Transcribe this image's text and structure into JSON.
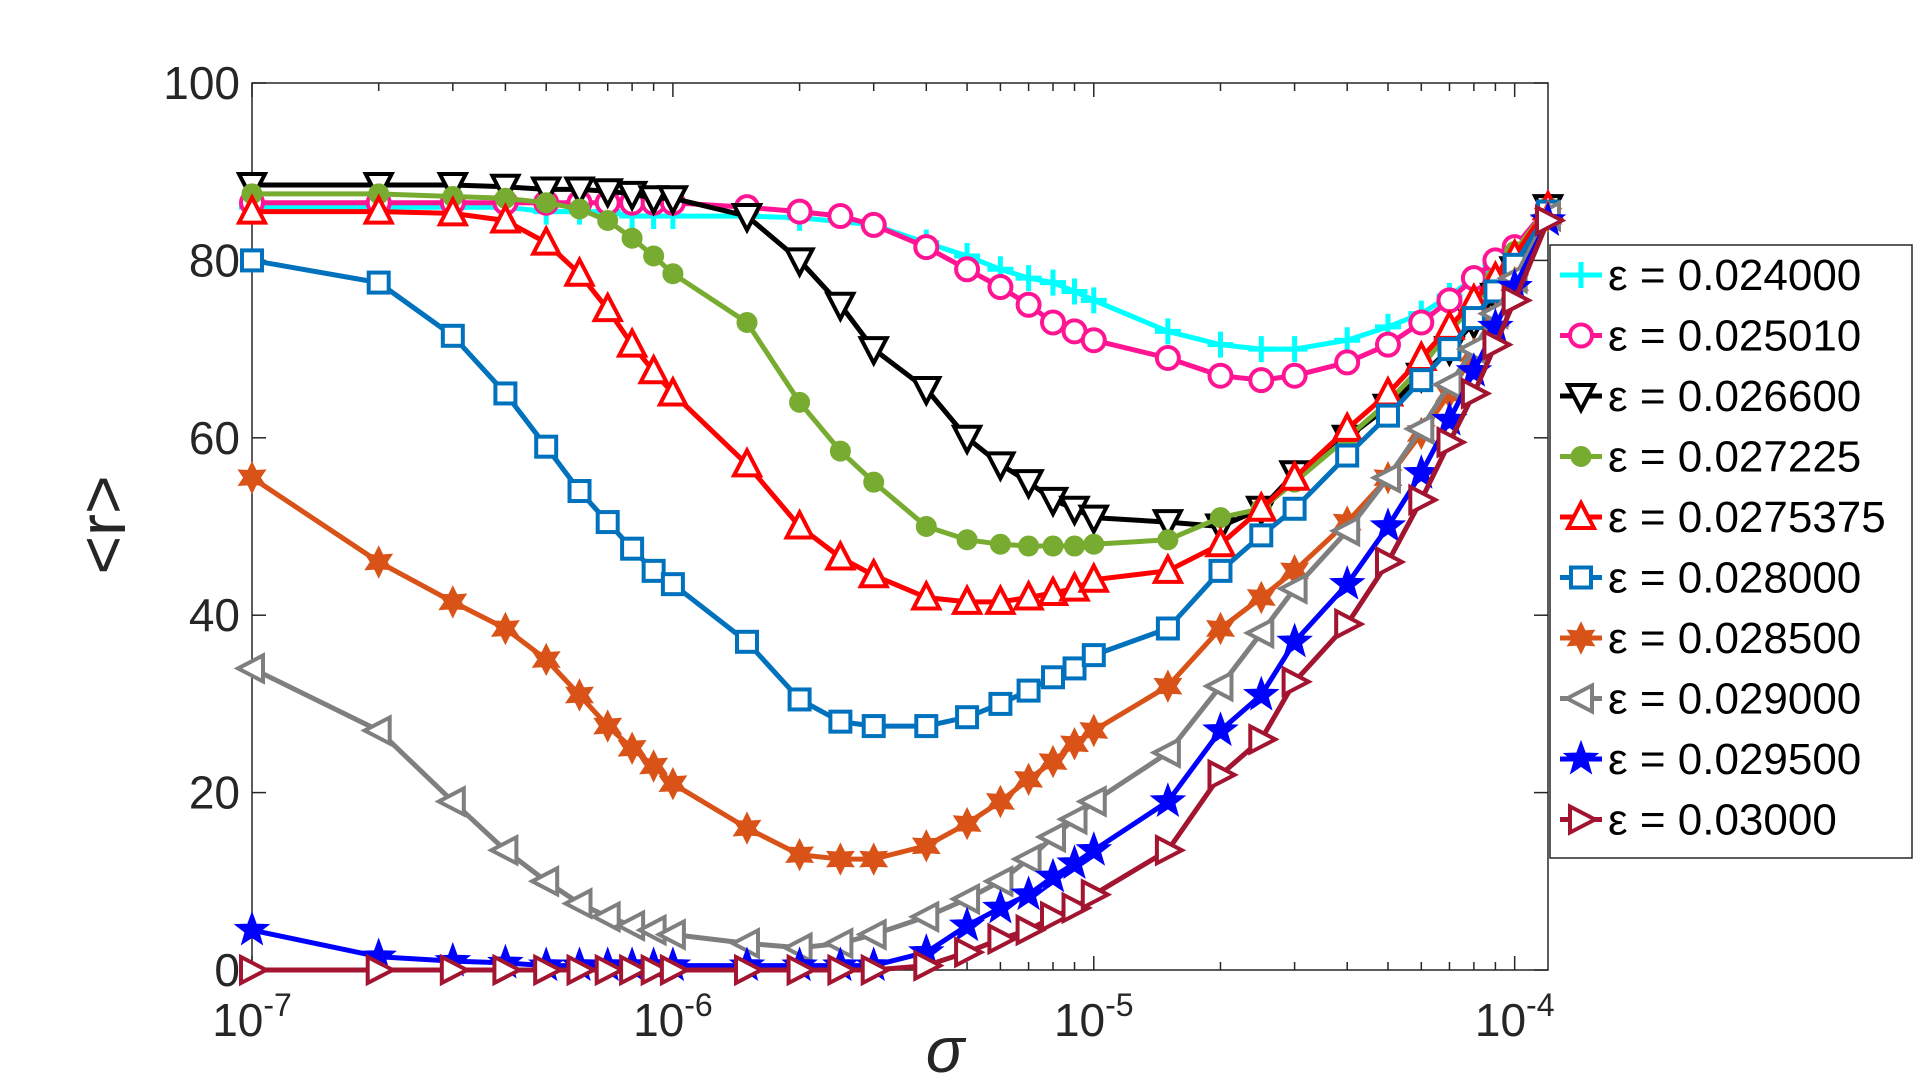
{
  "chart_data": {
    "type": "line",
    "title": "",
    "xlabel": "σ",
    "ylabel": "<r>",
    "xscale": "log",
    "xlim": [
      1e-07,
      0.00012
    ],
    "ylim": [
      0,
      100
    ],
    "grid": false,
    "legend_position": "right",
    "x_tick_values": [
      1e-07,
      1e-06,
      1e-05,
      0.0001
    ],
    "x_tick_labels": [
      {
        "base": "10",
        "exp": "-7"
      },
      {
        "base": "10",
        "exp": "-6"
      },
      {
        "base": "10",
        "exp": "-5"
      },
      {
        "base": "10",
        "exp": "-4"
      }
    ],
    "y_ticks": [
      0,
      20,
      40,
      60,
      80,
      100
    ],
    "y_tick_labels": [
      "0",
      "20",
      "40",
      "60",
      "80",
      "100"
    ],
    "series": [
      {
        "name": "ε = 0.024000",
        "color": "#00ffff",
        "marker": "plus",
        "x": [
          1e-07,
          2e-07,
          3e-07,
          4e-07,
          5e-07,
          6e-07,
          7e-07,
          8e-07,
          9e-07,
          1e-06,
          1.5e-06,
          2e-06,
          3e-06,
          4e-06,
          5e-06,
          6e-06,
          7e-06,
          8e-06,
          9e-06,
          1e-05,
          1.5e-05,
          2e-05,
          2.5e-05,
          3e-05,
          4e-05,
          5e-05,
          6e-05,
          7e-05,
          8e-05,
          9e-05,
          0.0001,
          0.00012
        ],
        "y": [
          86,
          86,
          86,
          86,
          85.5,
          85.5,
          85.5,
          85,
          85,
          85,
          85,
          84.8,
          84,
          82,
          80.5,
          79,
          78,
          77.5,
          76.5,
          75.5,
          72,
          70.5,
          70,
          70,
          71,
          72.5,
          74,
          76,
          78,
          79.5,
          81,
          86
        ]
      },
      {
        "name": "ε = 0.025010",
        "color": "#ff1493",
        "marker": "circle",
        "x": [
          1e-07,
          2e-07,
          3e-07,
          4e-07,
          5e-07,
          6e-07,
          7e-07,
          8e-07,
          9e-07,
          1e-06,
          1.5e-06,
          2e-06,
          2.5e-06,
          3e-06,
          4e-06,
          5e-06,
          6e-06,
          7e-06,
          8e-06,
          9e-06,
          1e-05,
          1.5e-05,
          2e-05,
          2.5e-05,
          3e-05,
          4e-05,
          5e-05,
          6e-05,
          7e-05,
          8e-05,
          9e-05,
          0.0001,
          0.00012
        ],
        "y": [
          86.5,
          86.5,
          86.5,
          86.5,
          86.5,
          86.5,
          86.5,
          86.5,
          86.5,
          86.5,
          86,
          85.5,
          85,
          84,
          81.5,
          79,
          77,
          75,
          73,
          72,
          71,
          69,
          67,
          66.5,
          67,
          68.5,
          70.5,
          73,
          75.5,
          78,
          80,
          81.5,
          86
        ]
      },
      {
        "name": "ε = 0.026600",
        "color": "#000000",
        "marker": "triangle-down",
        "x": [
          1e-07,
          2e-07,
          3e-07,
          4e-07,
          5e-07,
          6e-07,
          7e-07,
          8e-07,
          9e-07,
          1e-06,
          1.5e-06,
          2e-06,
          2.5e-06,
          3e-06,
          4e-06,
          5e-06,
          6e-06,
          7e-06,
          8e-06,
          9e-06,
          1e-05,
          1.5e-05,
          2e-05,
          2.5e-05,
          3e-05,
          4e-05,
          5e-05,
          6e-05,
          7e-05,
          8e-05,
          9e-05,
          0.0001,
          0.00012
        ],
        "y": [
          88.5,
          88.5,
          88.5,
          88.3,
          88,
          88,
          87.8,
          87.5,
          87,
          87,
          85,
          80,
          75,
          70,
          65.5,
          60,
          57,
          55,
          53,
          52,
          51,
          50.5,
          50,
          52,
          56,
          60,
          63.5,
          67,
          70,
          73,
          76,
          79,
          86
        ]
      },
      {
        "name": "ε = 0.027225",
        "color": "#77ac30",
        "marker": "dot",
        "x": [
          1e-07,
          2e-07,
          3e-07,
          4e-07,
          5e-07,
          6e-07,
          7e-07,
          8e-07,
          9e-07,
          1e-06,
          1.5e-06,
          2e-06,
          2.5e-06,
          3e-06,
          4e-06,
          5e-06,
          6e-06,
          7e-06,
          8e-06,
          9e-06,
          1e-05,
          1.5e-05,
          2e-05,
          2.5e-05,
          3e-05,
          4e-05,
          5e-05,
          6e-05,
          7e-05,
          8e-05,
          9e-05,
          0.0001,
          0.00012
        ],
        "y": [
          87.5,
          87.5,
          87.2,
          87,
          86.5,
          85.8,
          84.5,
          82.5,
          80.5,
          78.5,
          73,
          64,
          58.5,
          55,
          50,
          48.5,
          48,
          47.8,
          47.8,
          47.8,
          48,
          48.5,
          51,
          52,
          55,
          60,
          64,
          68,
          72,
          75,
          78,
          81,
          86
        ]
      },
      {
        "name": "ε = 0.0275375",
        "color": "#ff0000",
        "marker": "triangle-up",
        "x": [
          1e-07,
          2e-07,
          3e-07,
          4e-07,
          5e-07,
          6e-07,
          7e-07,
          8e-07,
          9e-07,
          1e-06,
          1.5e-06,
          2e-06,
          2.5e-06,
          3e-06,
          4e-06,
          5e-06,
          6e-06,
          7e-06,
          8e-06,
          9e-06,
          1e-05,
          1.5e-05,
          2e-05,
          2.5e-05,
          3e-05,
          4e-05,
          5e-05,
          6e-05,
          7e-05,
          8e-05,
          9e-05,
          0.0001,
          0.00012
        ],
        "y": [
          85.5,
          85.5,
          85.3,
          84.5,
          82,
          78.5,
          74.5,
          70.5,
          67.5,
          65,
          57,
          50,
          46.5,
          44.5,
          42,
          41.5,
          41.5,
          42,
          42.5,
          43,
          44,
          45,
          48,
          52,
          55.5,
          61,
          65,
          69,
          72.5,
          75.5,
          78,
          80.5,
          86
        ]
      },
      {
        "name": "ε = 0.028000",
        "color": "#0072bd",
        "marker": "square",
        "x": [
          1e-07,
          2e-07,
          3e-07,
          4e-07,
          5e-07,
          6e-07,
          7e-07,
          8e-07,
          9e-07,
          1e-06,
          1.5e-06,
          2e-06,
          2.5e-06,
          3e-06,
          4e-06,
          5e-06,
          6e-06,
          7e-06,
          8e-06,
          9e-06,
          1e-05,
          1.5e-05,
          2e-05,
          2.5e-05,
          3e-05,
          4e-05,
          5e-05,
          6e-05,
          7e-05,
          8e-05,
          9e-05,
          0.0001,
          0.00012
        ],
        "y": [
          80,
          77.5,
          71.5,
          65,
          59,
          54,
          50.5,
          47.5,
          45,
          43.5,
          37,
          30.5,
          28,
          27.5,
          27.5,
          28.5,
          30,
          31.5,
          33,
          34,
          35.5,
          38.5,
          45,
          49,
          52,
          58,
          62.5,
          66.5,
          70,
          73.5,
          76.5,
          79.5,
          85.5
        ]
      },
      {
        "name": "ε = 0.028500",
        "color": "#d95319",
        "marker": "star6",
        "x": [
          1e-07,
          2e-07,
          3e-07,
          4e-07,
          5e-07,
          6e-07,
          7e-07,
          8e-07,
          9e-07,
          1e-06,
          1.5e-06,
          2e-06,
          2.5e-06,
          3e-06,
          4e-06,
          5e-06,
          6e-06,
          7e-06,
          8e-06,
          9e-06,
          1e-05,
          1.5e-05,
          2e-05,
          2.5e-05,
          3e-05,
          4e-05,
          5e-05,
          6e-05,
          7e-05,
          8e-05,
          9e-05,
          0.0001,
          0.00012
        ],
        "y": [
          55.5,
          46,
          41.5,
          38.5,
          35,
          31,
          27.5,
          25,
          23,
          21,
          16,
          13,
          12.5,
          12.5,
          14,
          16.5,
          19,
          21.5,
          23.5,
          25.5,
          27,
          32,
          38.5,
          42,
          45,
          50.5,
          55.5,
          60.5,
          65,
          69.5,
          73.5,
          77.5,
          85
        ]
      },
      {
        "name": "ε = 0.029000",
        "color": "#7f7f7f",
        "marker": "triangle-left",
        "x": [
          1e-07,
          2e-07,
          3e-07,
          4e-07,
          5e-07,
          6e-07,
          7e-07,
          8e-07,
          9e-07,
          1e-06,
          1.5e-06,
          2e-06,
          2.5e-06,
          3e-06,
          4e-06,
          5e-06,
          6e-06,
          7e-06,
          8e-06,
          9e-06,
          1e-05,
          1.5e-05,
          2e-05,
          2.5e-05,
          3e-05,
          4e-05,
          5e-05,
          6e-05,
          7e-05,
          8e-05,
          9e-05,
          0.0001,
          0.00012
        ],
        "y": [
          34,
          27,
          19,
          13.5,
          10,
          7.5,
          6,
          5,
          4.5,
          4,
          3,
          2.5,
          3,
          4,
          6,
          8,
          10,
          12.5,
          15,
          17,
          19,
          24.5,
          32,
          38,
          43,
          49.5,
          55.5,
          61,
          66,
          70,
          74,
          78,
          85
        ]
      },
      {
        "name": "ε = 0.029500",
        "color": "#0000ff",
        "marker": "star5",
        "x": [
          1e-07,
          2e-07,
          3e-07,
          4e-07,
          5e-07,
          6e-07,
          7e-07,
          8e-07,
          9e-07,
          1e-06,
          1.5e-06,
          2e-06,
          2.5e-06,
          3e-06,
          4e-06,
          5e-06,
          6e-06,
          7e-06,
          8e-06,
          9e-06,
          1e-05,
          1.5e-05,
          2e-05,
          2.5e-05,
          3e-05,
          4e-05,
          5e-05,
          6e-05,
          7e-05,
          8e-05,
          9e-05,
          0.0001,
          0.00012
        ],
        "y": [
          4.5,
          1.5,
          1,
          0.8,
          0.5,
          0.5,
          0.5,
          0.5,
          0.5,
          0.5,
          0.5,
          0.5,
          0.5,
          0.5,
          2,
          5,
          7,
          8.5,
          10.5,
          12,
          13.5,
          19,
          27,
          31,
          37,
          43.5,
          50,
          56,
          62,
          67.5,
          72.5,
          77,
          84.5
        ]
      },
      {
        "name": "ε = 0.03000",
        "color": "#a2142f",
        "marker": "triangle-right",
        "x": [
          1e-07,
          2e-07,
          3e-07,
          4e-07,
          5e-07,
          6e-07,
          7e-07,
          8e-07,
          9e-07,
          1e-06,
          1.5e-06,
          2e-06,
          2.5e-06,
          3e-06,
          4e-06,
          5e-06,
          6e-06,
          7e-06,
          8e-06,
          9e-06,
          1e-05,
          1.5e-05,
          2e-05,
          2.5e-05,
          3e-05,
          4e-05,
          5e-05,
          6e-05,
          7e-05,
          8e-05,
          9e-05,
          0.0001,
          0.00012
        ],
        "y": [
          0,
          0,
          0,
          0,
          0,
          0,
          0,
          0,
          0,
          0,
          0,
          0,
          0,
          0,
          0.5,
          2,
          3.5,
          4.5,
          6,
          7,
          8.5,
          13.5,
          22,
          26,
          32.5,
          39,
          46,
          53,
          59.5,
          65,
          70.5,
          75.5,
          84.5
        ]
      }
    ]
  }
}
